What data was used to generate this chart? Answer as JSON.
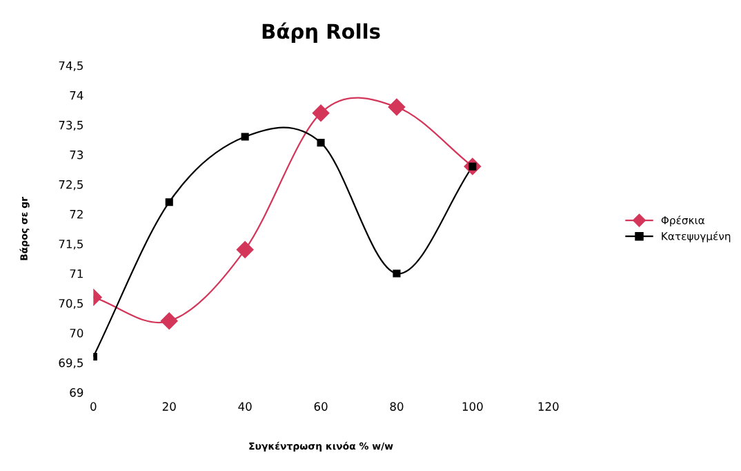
{
  "chart_data": {
    "type": "line",
    "title": "Βάρη Rolls",
    "xlabel": "Συγκέντρωση κινόα % w/w",
    "ylabel": "Βάρος σε gr",
    "x": [
      0,
      20,
      40,
      60,
      80,
      100
    ],
    "series": [
      {
        "name": "Φρέσκια",
        "color": "#d4365a",
        "marker": "diamond",
        "values": [
          70.6,
          70.2,
          71.4,
          73.7,
          73.8,
          72.8
        ]
      },
      {
        "name": "Κατεψυγμένη",
        "color": "#000000",
        "marker": "square",
        "values": [
          69.6,
          72.2,
          73.3,
          73.2,
          71.0,
          72.8
        ]
      }
    ],
    "xlim": [
      0,
      120
    ],
    "xticks": [
      0,
      20,
      40,
      60,
      80,
      100,
      120
    ],
    "ylim": [
      69,
      74.5
    ],
    "yticks": [
      69,
      {
        "value": 69.5,
        "label": "69,5"
      },
      70,
      {
        "value": 70.5,
        "label": "70,5"
      },
      71,
      {
        "value": 71.5,
        "label": "71,5"
      },
      72,
      {
        "value": 72.5,
        "label": "72,5"
      },
      73,
      {
        "value": 73.5,
        "label": "73,5"
      },
      74,
      {
        "value": 74.5,
        "label": "74,5"
      }
    ],
    "grid": false,
    "legend": "right",
    "line_style": "solid"
  }
}
